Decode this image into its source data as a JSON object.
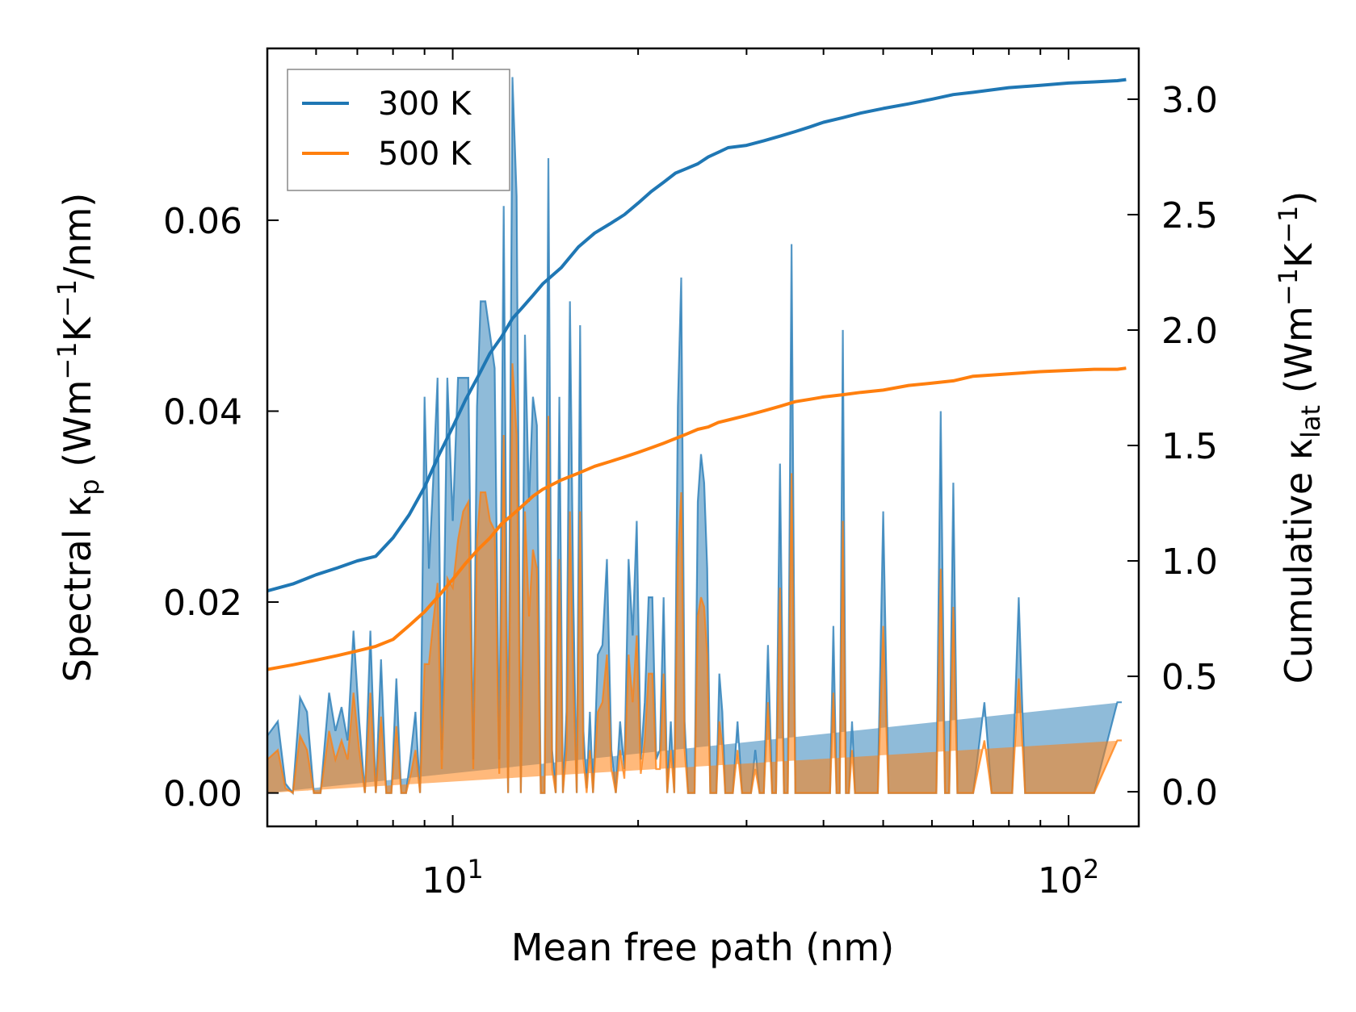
{
  "chart_data": {
    "type": "line",
    "xlabel": "Mean free path (nm)",
    "xscale": "log",
    "xlim": [
      5,
      130
    ],
    "x_ticks": [
      {
        "value": 10,
        "base": "10",
        "exp": "1"
      },
      {
        "value": 100,
        "base": "10",
        "exp": "2"
      }
    ],
    "ylabel_left": {
      "prefix": "Spectral κ",
      "sub": "p",
      "units_open": " (Wm",
      "exp1": "−1",
      "mid": "K",
      "exp2": "−1",
      "tail": "/nm)"
    },
    "ylabel_right": {
      "prefix": "Cumulative κ",
      "sub": "lat",
      "units_open": " (Wm",
      "exp1": "−1",
      "mid": "K",
      "exp2": "−1",
      "tail": ")"
    },
    "ylim_left": [
      -0.0035,
      0.078
    ],
    "ylim_right": [
      -0.15,
      3.22
    ],
    "left_ticks": [
      {
        "value": 0.0,
        "label": "0.00"
      },
      {
        "value": 0.02,
        "label": "0.02"
      },
      {
        "value": 0.04,
        "label": "0.04"
      },
      {
        "value": 0.06,
        "label": "0.06"
      }
    ],
    "right_ticks": [
      {
        "value": 0.0,
        "label": "0.0"
      },
      {
        "value": 0.5,
        "label": "0.5"
      },
      {
        "value": 1.0,
        "label": "1.0"
      },
      {
        "value": 1.5,
        "label": "1.5"
      },
      {
        "value": 2.0,
        "label": "2.0"
      },
      {
        "value": 2.5,
        "label": "2.5"
      },
      {
        "value": 3.0,
        "label": "3.0"
      }
    ],
    "legend_position": "top-left",
    "series": [
      {
        "name": "300 K",
        "color": "#1f77b4",
        "spectral_x": [
          5.0,
          5.2,
          5.35,
          5.5,
          5.65,
          5.8,
          5.95,
          6.1,
          6.3,
          6.45,
          6.6,
          6.75,
          6.9,
          7.05,
          7.2,
          7.35,
          7.5,
          7.65,
          7.8,
          7.95,
          8.1,
          8.25,
          8.4,
          8.55,
          8.7,
          8.85,
          9.0,
          9.15,
          9.3,
          9.45,
          9.6,
          9.8,
          10.0,
          10.2,
          10.4,
          10.6,
          10.8,
          10.95,
          11.1,
          11.3,
          11.5,
          11.7,
          11.9,
          12.1,
          12.3,
          12.5,
          12.7,
          12.9,
          13.1,
          13.3,
          13.5,
          13.7,
          13.9,
          14.1,
          14.3,
          14.5,
          14.7,
          14.9,
          15.1,
          15.3,
          15.5,
          15.7,
          15.9,
          16.1,
          16.3,
          16.5,
          16.7,
          16.9,
          17.2,
          17.5,
          17.8,
          18.1,
          18.4,
          18.7,
          19.0,
          19.3,
          19.6,
          19.9,
          20.2,
          20.5,
          20.8,
          21.1,
          21.4,
          21.7,
          22.0,
          22.3,
          22.6,
          22.9,
          23.2,
          23.5,
          23.8,
          24.1,
          24.4,
          24.7,
          25.0,
          25.3,
          25.6,
          25.9,
          26.2,
          26.5,
          26.8,
          27.1,
          27.4,
          27.7,
          28.0,
          28.5,
          29.0,
          29.5,
          30.0,
          30.5,
          31.0,
          31.5,
          32.0,
          32.5,
          33.0,
          33.5,
          34.0,
          34.5,
          35.0,
          35.5,
          36.0,
          36.5,
          37.0,
          38.0,
          39.0,
          40.0,
          41.0,
          41.5,
          42.0,
          42.5,
          43.0,
          43.5,
          44.0,
          44.5,
          45.0,
          46.0,
          47.0,
          48.0,
          49.0,
          50.0,
          51.0,
          52.0,
          54.0,
          56.0,
          58.0,
          60.0,
          61.0,
          62.0,
          63.0,
          64.0,
          65.0,
          66.0,
          67.0,
          70.0,
          73.0,
          75.0,
          78.0,
          81.0,
          83.0,
          85.0,
          87.0,
          90.0,
          100.0,
          110.0,
          120.0,
          122.0,
          124.0
        ],
        "spectral_y": [
          0.006,
          0.0075,
          0.001,
          0.0,
          0.01,
          0.0085,
          0.0,
          0.0,
          0.0105,
          0.0065,
          0.009,
          0.0055,
          0.017,
          0.0075,
          0.0,
          0.017,
          0.0,
          0.014,
          0.0,
          0.0,
          0.012,
          0.0,
          0.0,
          0.0041,
          0.0085,
          0.0,
          0.0415,
          0.0235,
          0.033,
          0.0435,
          0.0045,
          0.0435,
          0.0285,
          0.0435,
          0.0435,
          0.0435,
          0.0035,
          0.0405,
          0.0515,
          0.0515,
          0.048,
          0.0445,
          0.0035,
          0.0615,
          0.0,
          0.075,
          0.0625,
          0.0,
          0.048,
          0.0305,
          0.0415,
          0.0385,
          0.0,
          0.0,
          0.0665,
          0.0045,
          0.0,
          0.0415,
          0.0,
          0.0085,
          0.0515,
          0.0205,
          0.0,
          0.049,
          0.0065,
          0.0005,
          0.0085,
          0.0,
          0.0145,
          0.0155,
          0.0245,
          0.0045,
          0.0,
          0.0075,
          0.0025,
          0.0245,
          0.0165,
          0.0285,
          0.0035,
          0.0095,
          0.0205,
          0.0205,
          0.0035,
          0.0045,
          0.0205,
          0.0,
          0.0075,
          0.0,
          0.0405,
          0.054,
          0.0075,
          0.0,
          0.0,
          0.0,
          0.0305,
          0.0355,
          0.0325,
          0.0235,
          0.0,
          0.0,
          0.0,
          0.0125,
          0.0085,
          0.0,
          0.0,
          0.0,
          0.0075,
          0.0,
          0.0,
          0.0,
          0.0045,
          0.0,
          0.0,
          0.0155,
          0.0,
          0.0,
          0.0345,
          0.0,
          0.0,
          0.0575,
          0.0,
          0.0,
          0.0,
          0.0,
          0.0,
          0.0,
          0.0,
          0.0175,
          0.0,
          0.0,
          0.0485,
          0.0,
          0.0,
          0.0075,
          0.0,
          0.0,
          0.0,
          0.0,
          0.0,
          0.0295,
          0.0,
          0.0,
          0.0,
          0.0,
          0.0,
          0.0,
          0.0,
          0.04,
          0.0,
          0.0,
          0.0325,
          0.0,
          0.0,
          0.0,
          0.0095,
          0.0,
          0.0,
          0.0,
          0.0205,
          0.0,
          0.0,
          0.0,
          0.0,
          0.0,
          0.0095,
          0.0095
        ],
        "cumulative_x": [
          5.0,
          5.5,
          6.0,
          6.5,
          7.0,
          7.5,
          8.0,
          8.5,
          9.0,
          9.5,
          10.0,
          10.5,
          11.0,
          11.5,
          12.0,
          12.5,
          13.0,
          13.5,
          14.0,
          15.0,
          16.0,
          17.0,
          18.0,
          19.0,
          20.0,
          21.0,
          22.0,
          23.0,
          24.0,
          25.0,
          26.0,
          27.0,
          28.0,
          30.0,
          32.0,
          34.0,
          36.0,
          38.0,
          40.0,
          43.0,
          46.0,
          50.0,
          55.0,
          60.0,
          65.0,
          70.0,
          80.0,
          90.0,
          100.0,
          110.0,
          120.0,
          124.0
        ],
        "cumulative_y": [
          0.87,
          0.9,
          0.94,
          0.97,
          1.0,
          1.02,
          1.1,
          1.2,
          1.32,
          1.46,
          1.58,
          1.7,
          1.8,
          1.9,
          1.97,
          2.05,
          2.1,
          2.15,
          2.2,
          2.27,
          2.36,
          2.42,
          2.46,
          2.5,
          2.55,
          2.6,
          2.64,
          2.68,
          2.7,
          2.72,
          2.75,
          2.77,
          2.79,
          2.8,
          2.82,
          2.84,
          2.86,
          2.88,
          2.9,
          2.92,
          2.94,
          2.96,
          2.98,
          3.0,
          3.02,
          3.03,
          3.05,
          3.06,
          3.07,
          3.075,
          3.08,
          3.085
        ]
      },
      {
        "name": "500 K",
        "color": "#ff7f0e",
        "spectral_x": [
          5.0,
          5.2,
          5.35,
          5.5,
          5.65,
          5.8,
          5.95,
          6.1,
          6.3,
          6.45,
          6.6,
          6.75,
          6.9,
          7.05,
          7.2,
          7.35,
          7.5,
          7.65,
          7.8,
          7.95,
          8.1,
          8.25,
          8.4,
          8.55,
          8.7,
          8.85,
          9.0,
          9.15,
          9.3,
          9.45,
          9.6,
          9.8,
          10.0,
          10.2,
          10.4,
          10.6,
          10.8,
          10.95,
          11.1,
          11.3,
          11.5,
          11.7,
          11.9,
          12.1,
          12.3,
          12.5,
          12.7,
          12.9,
          13.1,
          13.3,
          13.5,
          13.7,
          13.9,
          14.1,
          14.3,
          14.5,
          14.7,
          14.9,
          15.1,
          15.3,
          15.5,
          15.7,
          15.9,
          16.1,
          16.3,
          16.5,
          16.7,
          16.9,
          17.2,
          17.5,
          17.8,
          18.1,
          18.4,
          18.7,
          19.0,
          19.3,
          19.6,
          19.9,
          20.2,
          20.5,
          20.8,
          21.1,
          21.4,
          21.7,
          22.0,
          22.3,
          22.6,
          22.9,
          23.2,
          23.5,
          23.8,
          24.1,
          24.4,
          24.7,
          25.0,
          25.3,
          25.6,
          25.9,
          26.2,
          26.5,
          26.8,
          27.1,
          27.4,
          27.7,
          28.0,
          28.5,
          29.0,
          29.5,
          30.0,
          30.5,
          31.0,
          31.5,
          32.0,
          32.5,
          33.0,
          33.5,
          34.0,
          34.5,
          35.0,
          35.5,
          36.0,
          36.5,
          37.0,
          38.0,
          39.0,
          40.0,
          41.0,
          41.5,
          42.0,
          42.5,
          43.0,
          43.5,
          44.0,
          44.5,
          45.0,
          46.0,
          47.0,
          48.0,
          49.0,
          50.0,
          51.0,
          52.0,
          54.0,
          56.0,
          58.0,
          60.0,
          61.0,
          62.0,
          63.0,
          64.0,
          65.0,
          66.0,
          67.0,
          70.0,
          73.0,
          75.0,
          78.0,
          81.0,
          83.0,
          85.0,
          87.0,
          90.0,
          100.0,
          110.0,
          120.0,
          122.0,
          124.0
        ],
        "spectral_y": [
          0.0035,
          0.0045,
          0.0005,
          0.0,
          0.006,
          0.0045,
          0.0,
          0.0,
          0.0065,
          0.0035,
          0.0055,
          0.0035,
          0.0105,
          0.0045,
          0.0,
          0.0105,
          0.0,
          0.008,
          0.0,
          0.0,
          0.007,
          0.0,
          0.0,
          0.002,
          0.0045,
          0.0,
          0.0135,
          0.0135,
          0.018,
          0.022,
          0.0025,
          0.0225,
          0.0215,
          0.0265,
          0.0295,
          0.0305,
          0.0025,
          0.0265,
          0.0315,
          0.0315,
          0.0285,
          0.0275,
          0.002,
          0.0375,
          0.0,
          0.045,
          0.0375,
          0.0,
          0.0295,
          0.0185,
          0.0255,
          0.0235,
          0.0,
          0.0,
          0.0395,
          0.0025,
          0.0,
          0.0245,
          0.0,
          0.0045,
          0.0295,
          0.0115,
          0.0,
          0.0295,
          0.0035,
          0.0,
          0.0045,
          0.0,
          0.0085,
          0.0095,
          0.0145,
          0.0025,
          0.0,
          0.0045,
          0.0015,
          0.0145,
          0.0095,
          0.0165,
          0.002,
          0.0055,
          0.0125,
          0.0125,
          0.0025,
          0.0025,
          0.0125,
          0.0,
          0.0045,
          0.0,
          0.0245,
          0.0315,
          0.0045,
          0.0,
          0.0,
          0.0,
          0.0185,
          0.0205,
          0.0195,
          0.0145,
          0.0,
          0.0,
          0.0,
          0.0075,
          0.005,
          0.0,
          0.0,
          0.0,
          0.0045,
          0.0,
          0.0,
          0.0,
          0.0025,
          0.0,
          0.0,
          0.0095,
          0.0,
          0.0,
          0.0215,
          0.0,
          0.0,
          0.0335,
          0.0,
          0.0,
          0.0,
          0.0,
          0.0,
          0.0,
          0.0,
          0.0105,
          0.0,
          0.0,
          0.0285,
          0.0,
          0.0,
          0.0045,
          0.0,
          0.0,
          0.0,
          0.0,
          0.0,
          0.0175,
          0.0,
          0.0,
          0.0,
          0.0,
          0.0,
          0.0,
          0.0,
          0.0235,
          0.0,
          0.0,
          0.0195,
          0.0,
          0.0,
          0.0,
          0.0055,
          0.0,
          0.0,
          0.0,
          0.012,
          0.0,
          0.0,
          0.0,
          0.0,
          0.0,
          0.0055,
          0.0055
        ],
        "cumulative_x": [
          5.0,
          5.5,
          6.0,
          6.5,
          7.0,
          7.5,
          8.0,
          8.5,
          9.0,
          9.5,
          10.0,
          10.5,
          11.0,
          11.5,
          12.0,
          12.5,
          13.0,
          13.5,
          14.0,
          15.0,
          16.0,
          17.0,
          18.0,
          19.0,
          20.0,
          21.0,
          22.0,
          23.0,
          24.0,
          25.0,
          26.0,
          27.0,
          28.0,
          30.0,
          32.0,
          34.0,
          36.0,
          38.0,
          40.0,
          43.0,
          46.0,
          50.0,
          55.0,
          60.0,
          65.0,
          70.0,
          80.0,
          90.0,
          100.0,
          110.0,
          120.0,
          124.0
        ],
        "cumulative_y": [
          0.53,
          0.55,
          0.57,
          0.59,
          0.61,
          0.63,
          0.66,
          0.72,
          0.78,
          0.85,
          0.92,
          0.99,
          1.05,
          1.1,
          1.16,
          1.2,
          1.24,
          1.28,
          1.31,
          1.35,
          1.38,
          1.41,
          1.43,
          1.45,
          1.47,
          1.49,
          1.51,
          1.53,
          1.55,
          1.57,
          1.58,
          1.6,
          1.61,
          1.63,
          1.65,
          1.67,
          1.69,
          1.7,
          1.71,
          1.72,
          1.73,
          1.74,
          1.76,
          1.77,
          1.78,
          1.8,
          1.81,
          1.82,
          1.825,
          1.83,
          1.83,
          1.835
        ]
      }
    ]
  }
}
